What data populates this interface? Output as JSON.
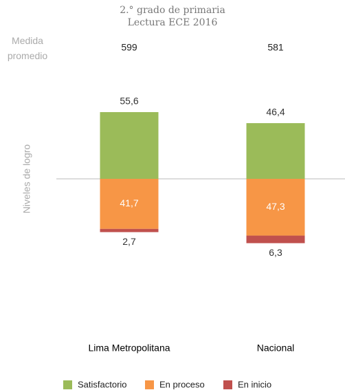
{
  "chart_data": {
    "type": "diverging_bar",
    "title": "2.° grado de primaria",
    "subtitle": "Lectura ECE 2016",
    "y_label": "Niveles de logro",
    "average_label": "Medida promedio",
    "average_values": [
      599,
      581
    ],
    "categories": [
      "Lima Metropolitana",
      "Nacional"
    ],
    "series": [
      {
        "name": "Satisfactorio",
        "color": "#9bbb59",
        "values": [
          55.6,
          46.4
        ],
        "value_labels": [
          "55,6",
          "46,4"
        ]
      },
      {
        "name": "En proceso",
        "color": "#f79646",
        "values": [
          41.7,
          47.3
        ],
        "value_labels": [
          "41,7",
          "47,3"
        ]
      },
      {
        "name": "En inicio",
        "color": "#c0504d",
        "values": [
          2.7,
          6.3
        ],
        "value_labels": [
          "2,7",
          "6,3"
        ]
      }
    ]
  }
}
